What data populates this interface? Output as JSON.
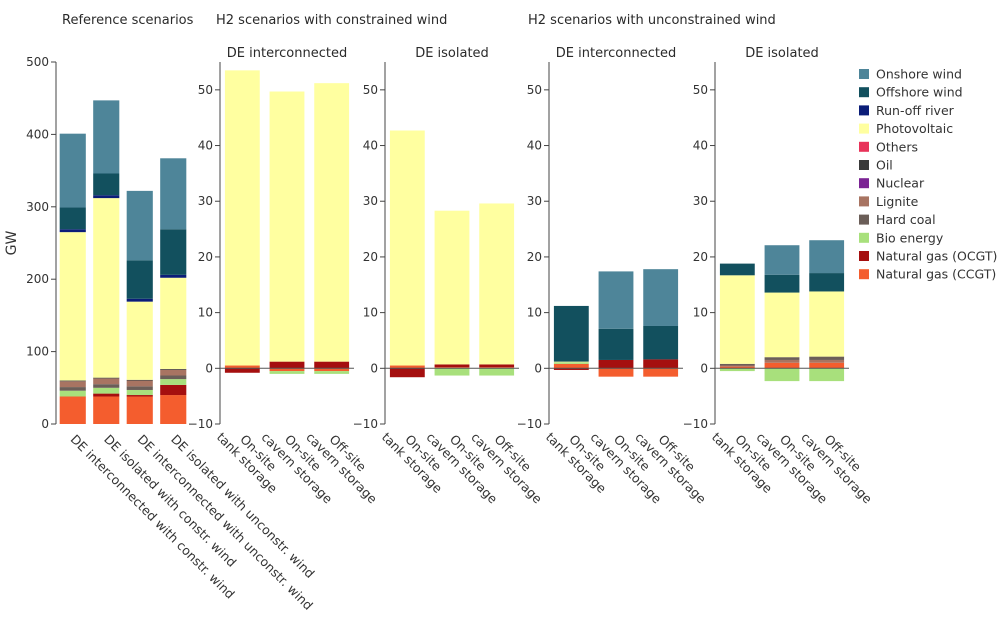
{
  "y_axis_label": "GW",
  "group_titles": [
    "Reference scenarios",
    "H2 scenarios with constrained wind",
    "H2 scenarios with unconstrained wind"
  ],
  "colors": {
    "Onshore wind": "#4e8599",
    "Offshore wind": "#12505e",
    "Run-off river": "#0b1d78",
    "Photovoltaic": "#ffffa0",
    "Others": "#e8335a",
    "Oil": "#3a3a3a",
    "Nuclear": "#7b2394",
    "Lignite": "#a87462",
    "Hard coal": "#6b5e58",
    "Bio energy": "#a8e07c",
    "Natural gas (OCGT)": "#a50f0f",
    "Natural gas (CCGT)": "#f45d2e"
  },
  "legend": [
    "Onshore wind",
    "Offshore wind",
    "Run-off river",
    "Photovoltaic",
    "Others",
    "Oil",
    "Nuclear",
    "Lignite",
    "Hard coal",
    "Bio energy",
    "Natural gas (OCGT)",
    "Natural gas (CCGT)"
  ],
  "chart_data": [
    {
      "type": "bar",
      "stacked": true,
      "title": "",
      "group": "Reference scenarios",
      "ylabel": "GW",
      "ylim": [
        0,
        500
      ],
      "yticks": [
        0,
        100,
        200,
        300,
        400,
        500
      ],
      "categories": [
        "DE interconnected with constr. wind",
        "DE isolated with constr. wind",
        "DE interconnected with unconstr. wind",
        "DE isolated with unconstr. wind"
      ],
      "series": [
        {
          "name": "Natural gas (CCGT)",
          "values": [
            38,
            38,
            38,
            40
          ]
        },
        {
          "name": "Natural gas (OCGT)",
          "values": [
            0,
            4,
            2,
            14
          ]
        },
        {
          "name": "Bio energy",
          "values": [
            8,
            8,
            7,
            8
          ]
        },
        {
          "name": "Hard coal",
          "values": [
            5,
            5,
            5,
            5
          ]
        },
        {
          "name": "Nuclear",
          "values": [
            0,
            0,
            0,
            0
          ]
        },
        {
          "name": "Lignite",
          "values": [
            8,
            8,
            8,
            8
          ]
        },
        {
          "name": "Oil",
          "values": [
            1,
            1,
            1,
            1
          ]
        },
        {
          "name": "Others",
          "values": [
            0,
            0,
            0,
            0
          ]
        },
        {
          "name": "Photovoltaic",
          "values": [
            205,
            248,
            108,
            126
          ]
        },
        {
          "name": "Run-off river",
          "values": [
            4,
            4,
            4,
            4
          ]
        },
        {
          "name": "Offshore wind",
          "values": [
            30,
            30,
            53,
            63
          ]
        },
        {
          "name": "Onshore wind",
          "values": [
            102,
            101,
            96,
            98
          ]
        }
      ]
    },
    {
      "type": "bar",
      "stacked": true,
      "title": "DE interconnected",
      "group": "H2 scenarios with constrained wind",
      "ylim": [
        -10,
        55
      ],
      "yticks": [
        -10,
        0,
        10,
        20,
        30,
        40,
        50
      ],
      "categories": [
        "On-site tank storage",
        "On-site cavern storage",
        "Off-site cavern storage"
      ],
      "series": [
        {
          "name": "Natural gas (CCGT)",
          "values": [
            0.5,
            -0.5,
            -0.5
          ]
        },
        {
          "name": "Natural gas (OCGT)",
          "values": [
            -0.8,
            1.2,
            1.2
          ]
        },
        {
          "name": "Bio energy",
          "values": [
            0,
            -0.5,
            -0.5
          ]
        },
        {
          "name": "Photovoltaic",
          "values": [
            53,
            48.5,
            50
          ]
        }
      ]
    },
    {
      "type": "bar",
      "stacked": true,
      "title": "DE isolated",
      "group": "H2 scenarios with constrained wind",
      "ylim": [
        -10,
        55
      ],
      "yticks": [
        -10,
        0,
        10,
        20,
        30,
        40,
        50
      ],
      "categories": [
        "On-site tank storage",
        "On-site cavern storage",
        "Off-site cavern storage"
      ],
      "series": [
        {
          "name": "Natural gas (CCGT)",
          "values": [
            0.5,
            0.2,
            0.2
          ]
        },
        {
          "name": "Natural gas (OCGT)",
          "values": [
            -1.6,
            0.5,
            0.5
          ]
        },
        {
          "name": "Bio energy",
          "values": [
            0,
            -1.3,
            -1.3
          ]
        },
        {
          "name": "Photovoltaic",
          "values": [
            42.2,
            27.6,
            28.9
          ]
        }
      ]
    },
    {
      "type": "bar",
      "stacked": true,
      "title": "DE interconnected",
      "group": "H2 scenarios with unconstrained wind",
      "ylim": [
        -10,
        55
      ],
      "yticks": [
        -10,
        0,
        10,
        20,
        30,
        40,
        50
      ],
      "categories": [
        "On-site tank storage",
        "On-site cavern storage",
        "Off-site cavern storage"
      ],
      "series": [
        {
          "name": "Natural gas (CCGT)",
          "values": [
            0.8,
            -1.5,
            -1.5
          ]
        },
        {
          "name": "Natural gas (OCGT)",
          "values": [
            -0.3,
            1.5,
            1.6
          ]
        },
        {
          "name": "Bio energy",
          "values": [
            0.3,
            0,
            0
          ]
        },
        {
          "name": "Photovoltaic",
          "values": [
            0.1,
            0,
            0
          ]
        },
        {
          "name": "Offshore wind",
          "values": [
            10,
            5.6,
            6
          ]
        },
        {
          "name": "Onshore wind",
          "values": [
            0,
            10.3,
            10.2
          ]
        }
      ]
    },
    {
      "type": "bar",
      "stacked": true,
      "title": "DE isolated",
      "group": "H2 scenarios with unconstrained wind",
      "ylim": [
        -10,
        55
      ],
      "yticks": [
        -10,
        0,
        10,
        20,
        30,
        40,
        50
      ],
      "categories": [
        "On-site tank storage",
        "On-site cavern storage",
        "Off-site cavern storage"
      ],
      "series": [
        {
          "name": "Natural gas (CCGT)",
          "values": [
            0.3,
            1.0,
            1.0
          ]
        },
        {
          "name": "Bio energy",
          "values": [
            -0.5,
            -2.3,
            -2.3
          ]
        },
        {
          "name": "Lignite",
          "values": [
            0.2,
            0.5,
            0.5
          ]
        },
        {
          "name": "Hard coal",
          "values": [
            0.3,
            0.5,
            0.6
          ]
        },
        {
          "name": "Photovoltaic",
          "values": [
            15.9,
            11.6,
            11.7
          ]
        },
        {
          "name": "Offshore wind",
          "values": [
            2.1,
            3.2,
            3.3
          ]
        },
        {
          "name": "Onshore wind",
          "values": [
            0,
            5.3,
            5.9
          ]
        }
      ]
    }
  ]
}
